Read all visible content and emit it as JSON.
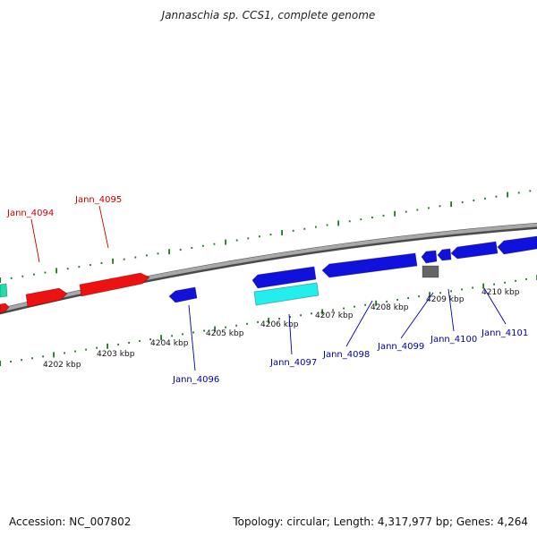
{
  "title": "Jannaschia sp. CCS1, complete genome",
  "footer": {
    "accession": "Accession: NC_007802",
    "stats": "Topology: circular; Length: 4,317,977 bp; Genes: 4,264"
  },
  "colors": {
    "backbone": "#8a8a8a",
    "tick": "#1e7a1e",
    "forward_label": "#cc0000",
    "reverse_label": "#0000aa",
    "gene_red": "#ee1111",
    "gene_blue": "#1111dd",
    "gene_cyan": "#22eeee",
    "gene_teal": "#22ddaa",
    "gene_gray": "#666666"
  },
  "ticks": [
    "4202 kbp",
    "4203 kbp",
    "4204 kbp",
    "4205 kbp",
    "4206 kbp",
    "4207 kbp",
    "4208 kbp",
    "4209 kbp",
    "4210 kbp"
  ],
  "genes_forward": [
    "Jann_4094",
    "Jann_4095"
  ],
  "genes_reverse": [
    "Jann_4096",
    "Jann_4097",
    "Jann_4098",
    "Jann_4099",
    "Jann_4100",
    "Jann_4101"
  ]
}
